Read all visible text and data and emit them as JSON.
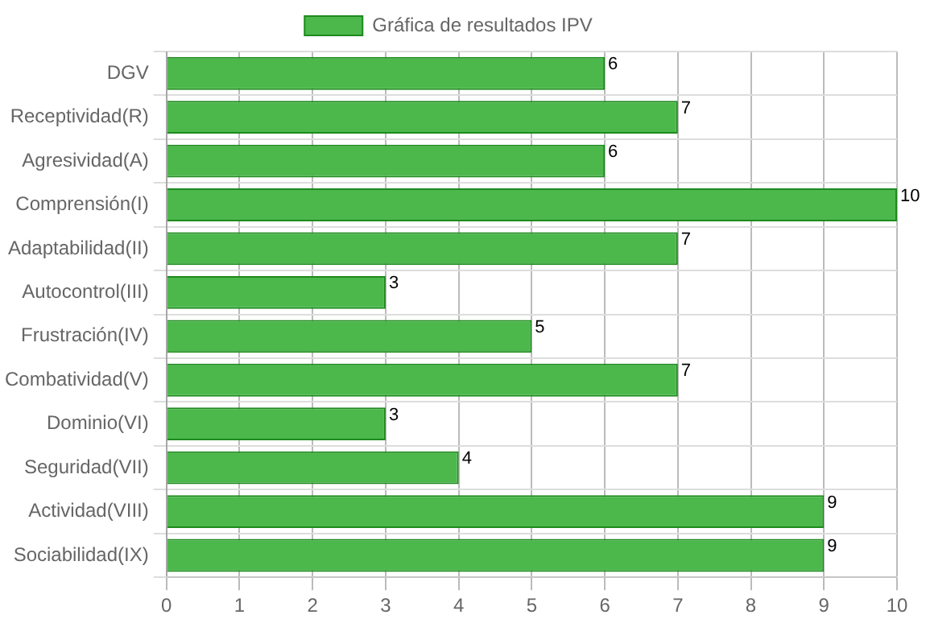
{
  "chart_data": {
    "type": "bar",
    "orientation": "horizontal",
    "categories": [
      "DGV",
      "Receptividad(R)",
      "Agresividad(A)",
      "Comprensión(I)",
      "Adaptabilidad(II)",
      "Autocontrol(III)",
      "Frustración(IV)",
      "Combatividad(V)",
      "Dominio(VI)",
      "Seguridad(VII)",
      "Actividad(VIII)",
      "Sociabilidad(IX)"
    ],
    "series": [
      {
        "name": "Gráfica de resultados IPV",
        "color": "#4cb84c",
        "values": [
          6,
          7,
          6,
          10,
          7,
          3,
          5,
          7,
          3,
          4,
          9,
          9
        ]
      }
    ],
    "xlim": [
      0,
      10
    ],
    "xticks": [
      0,
      1,
      2,
      3,
      4,
      5,
      6,
      7,
      8,
      9,
      10
    ],
    "grid": true,
    "legend": "top",
    "data_labels": true
  }
}
